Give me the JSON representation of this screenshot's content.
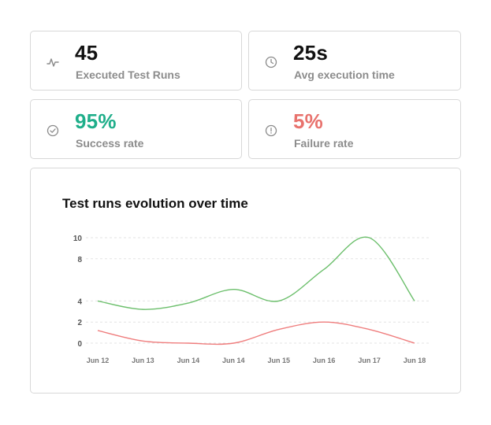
{
  "stats": [
    {
      "value": "45",
      "label": "Executed Test Runs",
      "icon": "activity-icon"
    },
    {
      "value": "25s",
      "label": "Avg execution time",
      "icon": "clock-icon"
    },
    {
      "value": "95%",
      "label": "Success rate",
      "icon": "check-circle-icon",
      "color": "#1fae8a"
    },
    {
      "value": "5%",
      "label": "Failure rate",
      "icon": "alert-circle-icon",
      "color": "#e8726d"
    }
  ],
  "chart": {
    "title": "Test runs evolution over time"
  },
  "chart_data": {
    "type": "line",
    "categories": [
      "Jun 12",
      "Jun 13",
      "Jun 14",
      "Jun 14",
      "Jun 15",
      "Jun 16",
      "Jun 17",
      "Jun 18"
    ],
    "series": [
      {
        "color": "#6cbf6c",
        "values": [
          4,
          3.2,
          3.8,
          5.1,
          4,
          7,
          10,
          4
        ]
      },
      {
        "color": "#ef7d7d",
        "values": [
          1.2,
          0.2,
          0,
          0,
          1.3,
          2,
          1.3,
          0
        ]
      }
    ],
    "yticks": [
      0,
      2,
      4,
      8,
      10
    ],
    "ylim": [
      0,
      10
    ],
    "grid": true
  }
}
